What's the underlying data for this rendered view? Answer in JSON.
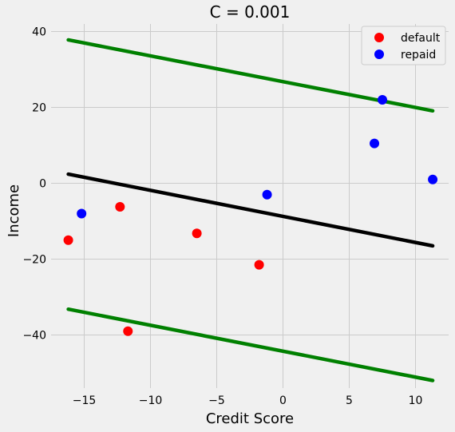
{
  "chart_data": {
    "type": "scatter",
    "title": "C = 0.001",
    "xlabel": "Credit Score",
    "ylabel": "Income",
    "xlim": [
      -17.5,
      12.5
    ],
    "ylim": [
      -54,
      42
    ],
    "xticks": [
      -15,
      -10,
      -5,
      0,
      5,
      10
    ],
    "yticks": [
      -40,
      -20,
      0,
      20,
      40
    ],
    "xtick_labels": [
      "−15",
      "−10",
      "−5",
      "0",
      "5",
      "10"
    ],
    "ytick_labels": [
      "−40",
      "−20",
      "0",
      "20",
      "40"
    ],
    "grid": true,
    "legend_position": "top-right",
    "series": [
      {
        "name": "default",
        "color": "#ff0000",
        "points": [
          [
            -16.2,
            -15
          ],
          [
            -12.3,
            -6.2
          ],
          [
            -11.7,
            -39
          ],
          [
            -6.5,
            -13.2
          ],
          [
            -1.8,
            -21.5
          ]
        ]
      },
      {
        "name": "repaid",
        "color": "#0000ff",
        "points": [
          [
            -15.2,
            -8
          ],
          [
            -1.2,
            -3
          ],
          [
            6.9,
            10.5
          ],
          [
            7.5,
            22
          ],
          [
            11.3,
            1
          ]
        ]
      }
    ],
    "lines": [
      {
        "role": "boundary",
        "color": "#000000",
        "x": [
          -16.2,
          11.3
        ],
        "y": [
          2.4,
          -16.5
        ]
      },
      {
        "role": "margin-upper",
        "color": "#008000",
        "x": [
          -16.2,
          11.3
        ],
        "y": [
          37.8,
          19.1
        ]
      },
      {
        "role": "margin-lower",
        "color": "#008000",
        "x": [
          -16.2,
          11.3
        ],
        "y": [
          -33.2,
          -52
        ]
      }
    ]
  }
}
